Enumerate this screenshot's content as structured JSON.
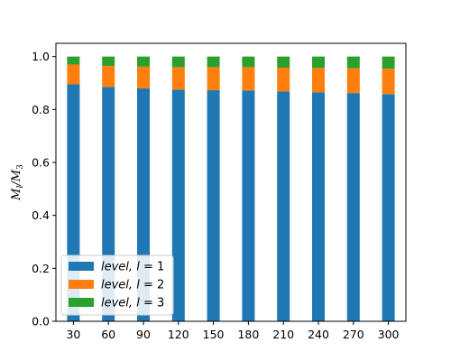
{
  "chart_data": {
    "type": "bar",
    "stacked": true,
    "categories": [
      "30",
      "60",
      "90",
      "120",
      "150",
      "180",
      "210",
      "240",
      "270",
      "300"
    ],
    "series": [
      {
        "name": "level, l = 1",
        "color": "#1f77b4",
        "values": [
          0.895,
          0.885,
          0.88,
          0.875,
          0.873,
          0.872,
          0.868,
          0.865,
          0.862,
          0.858
        ]
      },
      {
        "name": "level, l = 2",
        "color": "#ff7f0e",
        "values": [
          0.075,
          0.08,
          0.082,
          0.085,
          0.087,
          0.088,
          0.09,
          0.092,
          0.094,
          0.096
        ]
      },
      {
        "name": "level, l = 3",
        "color": "#2ca02c",
        "values": [
          0.03,
          0.035,
          0.038,
          0.04,
          0.04,
          0.04,
          0.042,
          0.043,
          0.044,
          0.046
        ]
      }
    ],
    "ylabel": "M_l/M_3",
    "ylabel_display": {
      "main": "M",
      "sub1": "l",
      "sep": "/M",
      "sub2": "3"
    },
    "xlabel": "",
    "ylim": [
      0,
      1.05
    ],
    "yticks": [
      0.0,
      0.2,
      0.4,
      0.6,
      0.8,
      1.0
    ],
    "ytick_labels": [
      "0.0",
      "0.2",
      "0.4",
      "0.6",
      "0.8",
      "1.0"
    ],
    "grid": false,
    "legend_position": "lower-left",
    "legend": [
      {
        "prefix": "level, ",
        "var": "l",
        "eq": " = 1"
      },
      {
        "prefix": "level, ",
        "var": "l",
        "eq": " = 2"
      },
      {
        "prefix": "level, ",
        "var": "l",
        "eq": " = 3"
      }
    ]
  }
}
